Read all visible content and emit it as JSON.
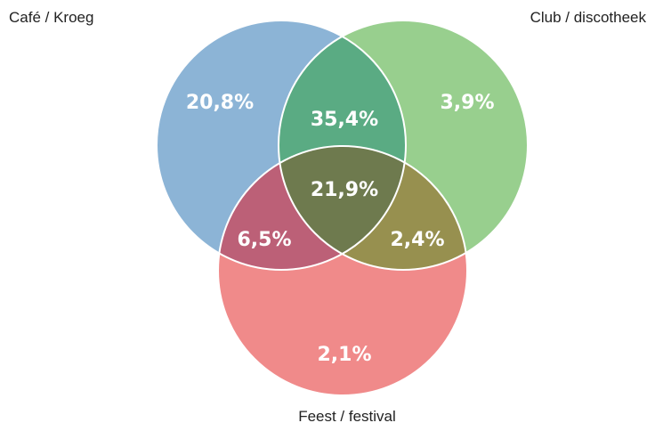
{
  "sets": [
    {
      "key": "cafe",
      "label": "Café / Kroeg",
      "color": "#8cb4d6"
    },
    {
      "key": "club",
      "label": "Club / discotheek",
      "color": "#98cf8e"
    },
    {
      "key": "feest",
      "label": "Feest / festival",
      "color": "#f08a8a"
    }
  ],
  "regions": {
    "cafe_only": "20,8%",
    "club_only": "3,9%",
    "feest_only": "2,1%",
    "cafe_club": "35,4%",
    "cafe_feest": "6,5%",
    "club_feest": "2,4%",
    "all_three": "21,9%"
  },
  "colors": {
    "cafe_club": "#5aab83",
    "cafe_feest": "#bc6077",
    "club_feest": "#97904f",
    "all_three": "#6e7a4e",
    "text": "#ffffff",
    "outline": "#ffffff"
  }
}
